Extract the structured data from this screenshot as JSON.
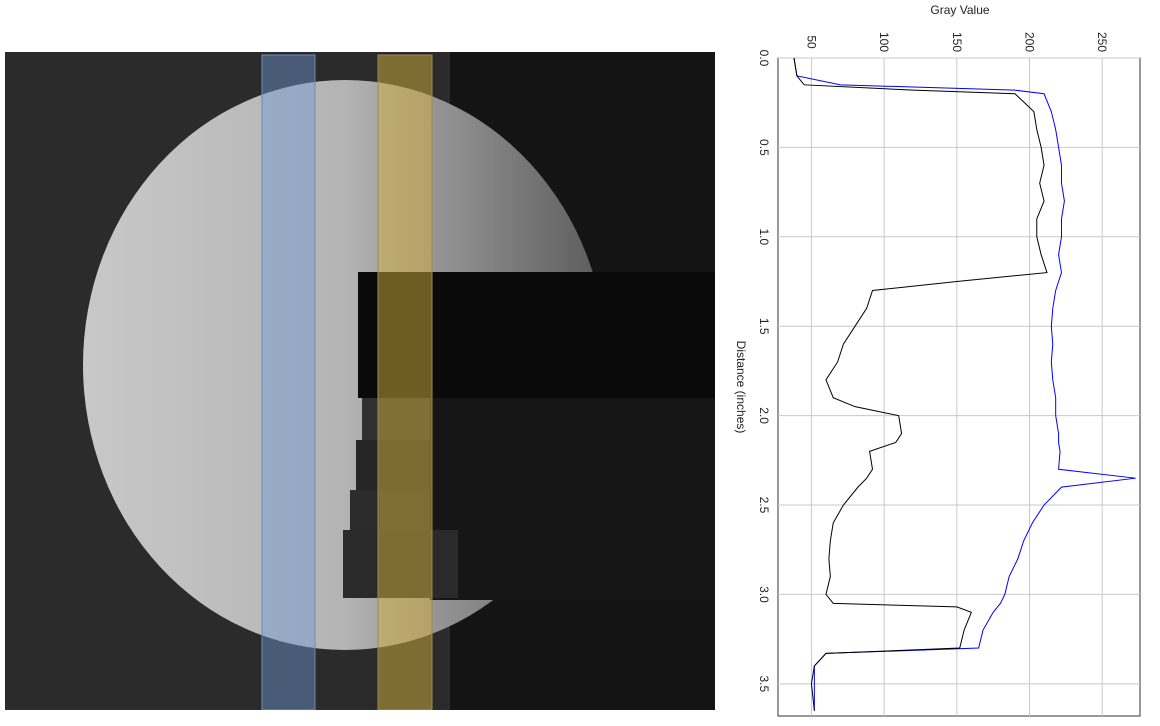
{
  "chart_data": {
    "type": "line",
    "title": "Gray Value",
    "x_label": "Distance (inches)",
    "x": [
      0,
      0.1,
      0.15,
      0.18,
      0.2,
      0.3,
      0.4,
      0.5,
      0.6,
      0.7,
      0.8,
      0.9,
      1.0,
      1.1,
      1.2,
      1.25,
      1.3,
      1.4,
      1.5,
      1.6,
      1.7,
      1.8,
      1.9,
      1.95,
      2.0,
      2.1,
      2.15,
      2.2,
      2.3,
      2.35,
      2.4,
      2.5,
      2.6,
      2.7,
      2.8,
      2.9,
      3.0,
      3.05,
      3.07,
      3.1,
      3.2,
      3.3,
      3.33,
      3.4,
      3.5,
      3.65
    ],
    "series": [
      {
        "color": "#000000",
        "values": [
          38,
          40,
          45,
          120,
          190,
          203,
          205,
          208,
          210,
          207,
          210,
          205,
          205,
          208,
          212,
          150,
          92,
          88,
          80,
          72,
          68,
          60,
          65,
          80,
          110,
          112,
          108,
          90,
          92,
          88,
          82,
          72,
          65,
          63,
          62,
          63,
          60,
          65,
          150,
          160,
          155,
          152,
          60,
          52,
          50,
          52
        ]
      },
      {
        "color": "#0000ff",
        "values": [
          38,
          40,
          70,
          190,
          210,
          215,
          218,
          220,
          222,
          222,
          224,
          222,
          222,
          220,
          222,
          220,
          218,
          216,
          215,
          216,
          215,
          216,
          218,
          218,
          218,
          220,
          220,
          221,
          220,
          273,
          222,
          210,
          202,
          196,
          192,
          186,
          183,
          180,
          178,
          175,
          168,
          165,
          60,
          52,
          52,
          52
        ]
      }
    ],
    "xlim": [
      0,
      3.68
    ],
    "xticks": [
      {
        "value": 0,
        "label": "0.0"
      },
      0.5,
      {
        "value": 1,
        "label": "1.0"
      },
      1.5,
      {
        "value": 2,
        "label": "2.0"
      },
      2.5,
      {
        "value": 3,
        "label": "3.0"
      },
      3.5
    ],
    "ylim": [
      27,
      276
    ],
    "yticks": [
      50,
      100,
      150,
      200,
      250
    ],
    "grid": true
  }
}
